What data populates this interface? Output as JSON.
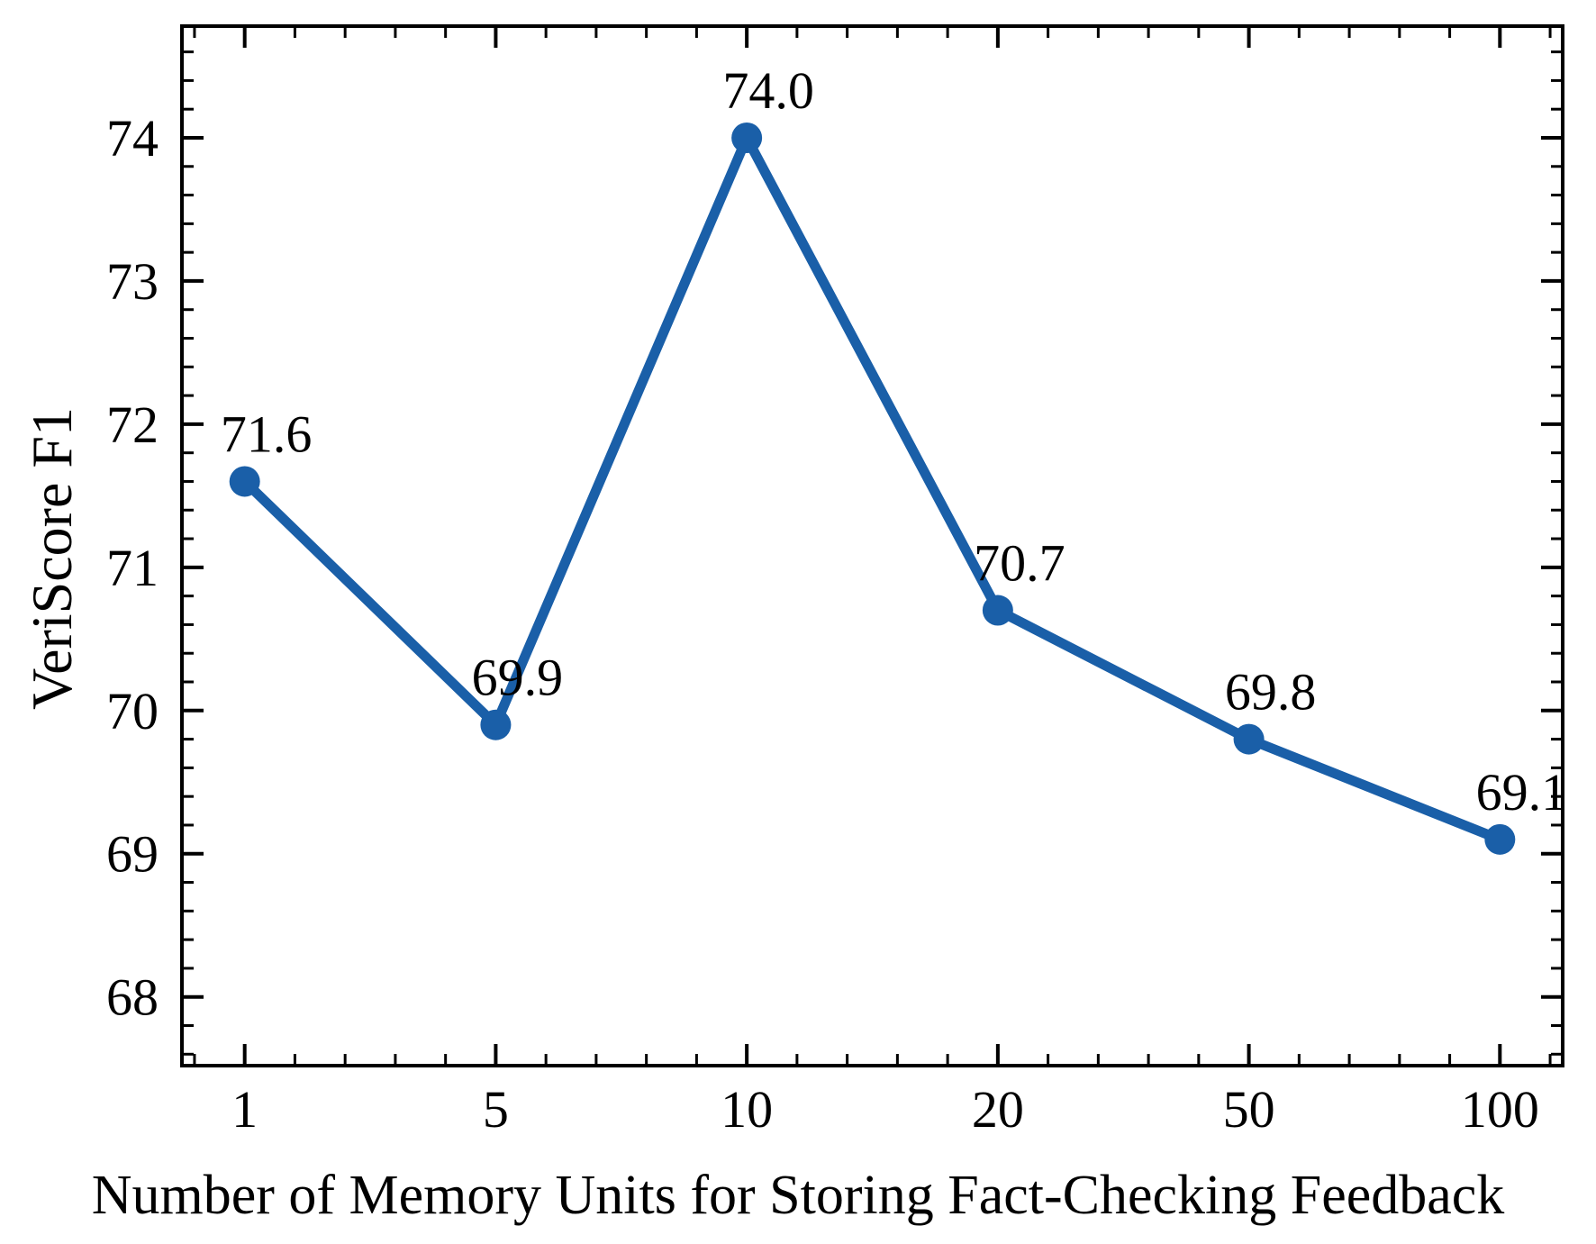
{
  "figure": {
    "background": "#ffffff"
  },
  "chart_data": {
    "type": "line",
    "title": "",
    "xlabel": "Number of Memory Units for Storing Fact-Checking Feedback",
    "ylabel": "VeriScore F1",
    "x": [
      1,
      5,
      10,
      20,
      50,
      100
    ],
    "x_tick_labels": [
      "1",
      "5",
      "10",
      "20",
      "50",
      "100"
    ],
    "values": [
      71.6,
      69.9,
      74.0,
      70.7,
      69.8,
      69.1
    ],
    "point_labels": [
      "71.6",
      "69.9",
      "74.0",
      "70.7",
      "69.8",
      "69.1"
    ],
    "y_ticks": [
      68,
      69,
      70,
      71,
      72,
      73,
      74
    ],
    "y_tick_labels": [
      "68",
      "69",
      "70",
      "71",
      "72",
      "73",
      "74"
    ],
    "ylim": [
      67.52,
      74.78
    ],
    "xlim_index": [
      -0.25,
      5.25
    ],
    "x_spacing": "equal",
    "x_minor_step_index": 0.2,
    "y_minor_step": 0.2,
    "grid": false,
    "legend": "none",
    "tick_direction": "in",
    "ticks_on_all_sides": true,
    "line_color": "#1a5fa8",
    "marker": "circle",
    "axis_color": "#000000",
    "text_color": "#000000"
  }
}
